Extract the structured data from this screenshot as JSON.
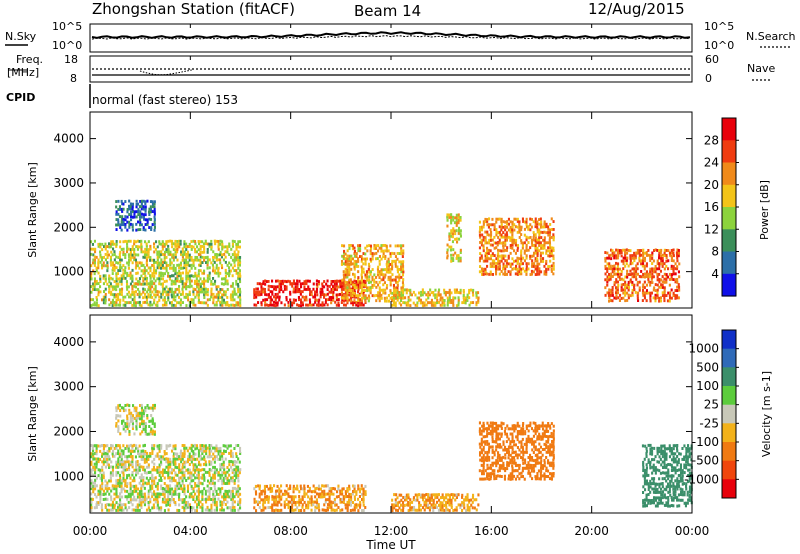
{
  "header": {
    "station": "Zhongshan Station (fitACF)",
    "beam": "Beam 14",
    "date": "12/Aug/2015"
  },
  "noise_panel": {
    "left_label": "N.Sky",
    "right_label": "N.Search",
    "left_ticks": [
      "10^5",
      "10^0"
    ],
    "right_ticks": [
      "10^5",
      "10^0"
    ]
  },
  "freq_panel": {
    "left_label_1": "Freq.",
    "left_label_2": "[MHz]",
    "left_ticks": [
      "18",
      "8"
    ],
    "right_label": "Nave",
    "right_ticks": [
      "60",
      "0"
    ]
  },
  "cpid": {
    "label": "CPID",
    "value": "normal (fast stereo) 153"
  },
  "x_axis": {
    "title": "Time UT",
    "ticks": [
      "00:00",
      "04:00",
      "08:00",
      "12:00",
      "16:00",
      "20:00",
      "00:00"
    ]
  },
  "power_panel": {
    "y_title": "Slant Range [km]",
    "y_ticks": [
      "4000",
      "3000",
      "2000",
      "1000"
    ],
    "cbar_title": "Power [dB]",
    "cbar_ticks": [
      "28",
      "24",
      "20",
      "16",
      "12",
      "8",
      "4"
    ],
    "cbar_colors": [
      "#e8000b",
      "#f03c10",
      "#f08a1a",
      "#f3c418",
      "#8cd33c",
      "#3b8f5a",
      "#2c6fa8",
      "#1010e8"
    ]
  },
  "velocity_panel": {
    "y_title": "Slant Range [km]",
    "y_ticks": [
      "4000",
      "3000",
      "2000",
      "1000"
    ],
    "cbar_title": "Velocity [m s-1]",
    "cbar_ticks": [
      "1000",
      "500",
      "100",
      "25",
      "-25",
      "-100",
      "-500",
      "-1000"
    ],
    "cbar_colors": [
      "#1030c8",
      "#2f6ab8",
      "#3b8f6a",
      "#5ccc3c",
      "#c8c8b8",
      "#f3b21a",
      "#f07a12",
      "#f0460c",
      "#e8000b"
    ]
  },
  "chart_data": {
    "type": "heatmap",
    "title": "Zhongshan Station (fitACF)  Beam 14  12/Aug/2015",
    "xlabel": "Time UT",
    "ylabel": "Slant Range [km]",
    "xlim": [
      "00:00",
      "24:00"
    ],
    "ylim": [
      180,
      4600
    ],
    "panels": [
      {
        "quantity": "Power [dB]",
        "colorbar_range": [
          0,
          32
        ],
        "echo_regions": [
          {
            "t_start": 0.0,
            "t_end": 6.0,
            "r_start": 200,
            "r_end": 1700,
            "level": 16
          },
          {
            "t_start": 1.0,
            "t_end": 2.6,
            "r_start": 1900,
            "r_end": 2600,
            "level": 6
          },
          {
            "t_start": 6.5,
            "t_end": 11.0,
            "r_start": 200,
            "r_end": 800,
            "level": 28
          },
          {
            "t_start": 10.0,
            "t_end": 12.5,
            "r_start": 300,
            "r_end": 1600,
            "level": 20
          },
          {
            "t_start": 12.0,
            "t_end": 15.5,
            "r_start": 200,
            "r_end": 600,
            "level": 18
          },
          {
            "t_start": 14.2,
            "t_end": 14.8,
            "r_start": 1200,
            "r_end": 2300,
            "level": 18
          },
          {
            "t_start": 15.5,
            "t_end": 18.5,
            "r_start": 900,
            "r_end": 2200,
            "level": 22
          },
          {
            "t_start": 20.5,
            "t_end": 23.5,
            "r_start": 300,
            "r_end": 1500,
            "level": 24
          }
        ]
      },
      {
        "quantity": "Velocity [m s-1]",
        "colorbar_range": [
          -1000,
          1000
        ],
        "echo_regions": [
          {
            "t_start": 0.0,
            "t_end": 6.0,
            "r_start": 200,
            "r_end": 1700,
            "level": 0
          },
          {
            "t_start": 1.0,
            "t_end": 2.6,
            "r_start": 1900,
            "r_end": 2600,
            "level": 0
          },
          {
            "t_start": 6.5,
            "t_end": 11.0,
            "r_start": 200,
            "r_end": 800,
            "level": -100
          },
          {
            "t_start": 12.0,
            "t_end": 15.5,
            "r_start": 200,
            "r_end": 600,
            "level": -100
          },
          {
            "t_start": 15.5,
            "t_end": 18.5,
            "r_start": 900,
            "r_end": 2200,
            "level": -300
          },
          {
            "t_start": 22.0,
            "t_end": 24.0,
            "r_start": 300,
            "r_end": 1700,
            "level": 200
          }
        ]
      }
    ]
  }
}
